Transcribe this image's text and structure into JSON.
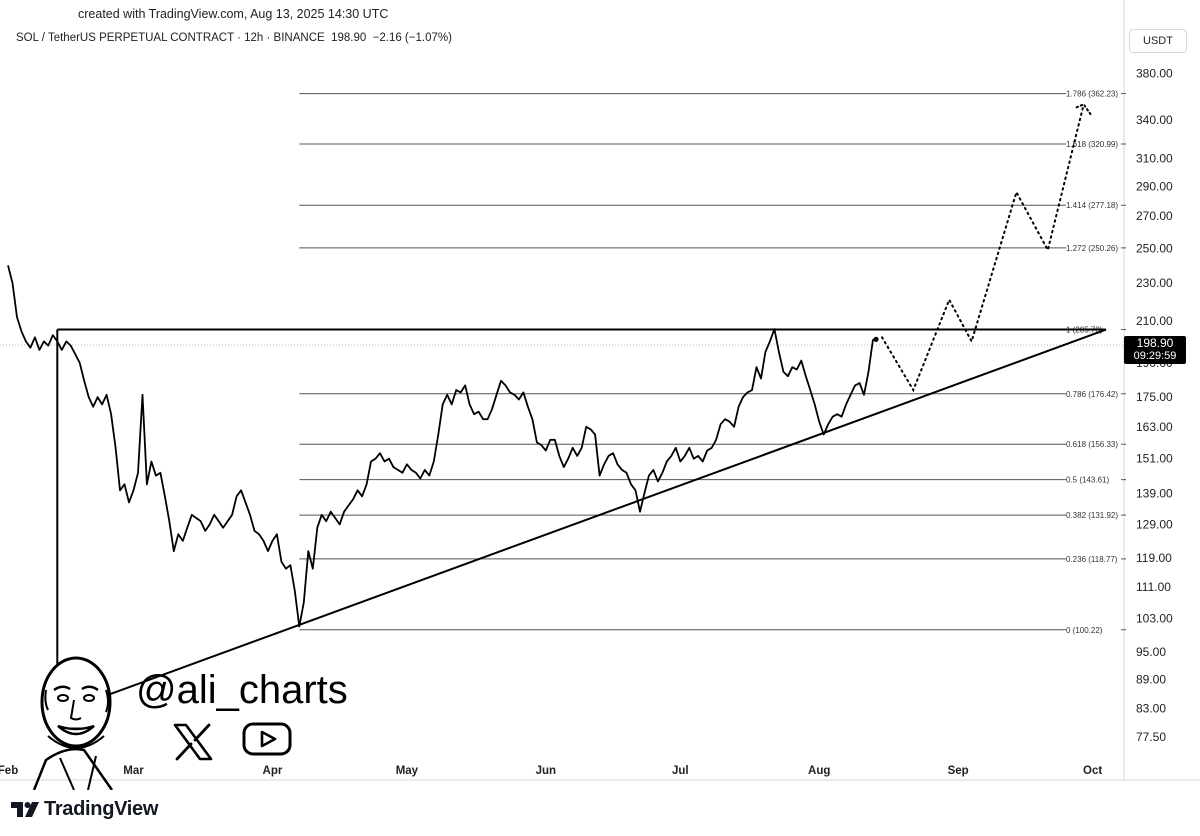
{
  "header": {
    "created": "created with TradingView.com, Aug 13, 2025 14:30 UTC",
    "title": "SOL / TetherUS PERPETUAL CONTRACT · 12h · BINANCE",
    "last": "198.90",
    "change": "−2.16 (−1.07%)",
    "currency": "USDT"
  },
  "price_label": {
    "price": "198.90",
    "countdown": "09:29:59"
  },
  "brand": {
    "name": "TradingView",
    "logo_icon": "tradingview-logo-icon"
  },
  "watermark": {
    "handle": "@ali_charts",
    "icons": [
      "avatar-icon",
      "x-logo-icon",
      "youtube-play-icon"
    ]
  },
  "chart_data": {
    "type": "line",
    "ylabel": "",
    "xlabel": "",
    "y_scale": "log",
    "ylim": [
      73,
      430
    ],
    "xlim": [
      "2025-02-01",
      "2025-10-08"
    ],
    "y_ticks": [
      "380.00",
      "340.00",
      "310.00",
      "290.00",
      "270.00",
      "250.00",
      "230.00",
      "210.00",
      "190.00",
      "175.00",
      "163.00",
      "151.00",
      "139.00",
      "129.00",
      "119.00",
      "111.00",
      "103.00",
      "95.00",
      "89.00",
      "83.00",
      "77.50"
    ],
    "x_ticks": [
      {
        "label": "Feb",
        "date": "2025-02-01"
      },
      {
        "label": "Mar",
        "date": "2025-03-01"
      },
      {
        "label": "Apr",
        "date": "2025-04-01"
      },
      {
        "label": "May",
        "date": "2025-05-01"
      },
      {
        "label": "Jun",
        "date": "2025-06-01"
      },
      {
        "label": "Jul",
        "date": "2025-07-01"
      },
      {
        "label": "Aug",
        "date": "2025-08-01"
      },
      {
        "label": "Sep",
        "date": "2025-09-01"
      },
      {
        "label": "Oct",
        "date": "2025-10-01"
      }
    ],
    "fib_levels": [
      {
        "label": "0 (100.22)",
        "value": 100.22
      },
      {
        "label": "0.236 (118.77)",
        "value": 118.77
      },
      {
        "label": "0.382 (131.92)",
        "value": 131.92
      },
      {
        "label": "0.5 (143.61)",
        "value": 143.61
      },
      {
        "label": "0.618 (156.33)",
        "value": 156.33
      },
      {
        "label": "0.786 (176.42)",
        "value": 176.42
      },
      {
        "label": "1 (205.78)",
        "value": 205.78
      },
      {
        "label": "1.272 (250.26)",
        "value": 250.26
      },
      {
        "label": "1.414 (277.18)",
        "value": 277.18
      },
      {
        "label": "1.618 (320.99)",
        "value": 320.99
      },
      {
        "label": "1.786 (362.23)",
        "value": 362.23
      }
    ],
    "fib_start": "2025-04-07",
    "fib_end": "2025-10-04",
    "resistance": {
      "value": 205.78,
      "from": "2025-02-12",
      "to": "2025-10-04"
    },
    "vertical_marker": {
      "date": "2025-02-12",
      "from_value": 205.78,
      "to_value": 82
    },
    "trendline": [
      {
        "date": "2025-02-12",
        "value": 82
      },
      {
        "date": "2025-10-04",
        "value": 205.78
      }
    ],
    "series": [
      {
        "values": [
          [
            "2025-02-01",
            240
          ],
          [
            "2025-02-02",
            230
          ],
          [
            "2025-02-03",
            212
          ],
          [
            "2025-02-04",
            205
          ],
          [
            "2025-02-05",
            200
          ],
          [
            "2025-02-06",
            197
          ],
          [
            "2025-02-07",
            202
          ],
          [
            "2025-02-08",
            196
          ],
          [
            "2025-02-09",
            200
          ],
          [
            "2025-02-10",
            198
          ],
          [
            "2025-02-11",
            203
          ],
          [
            "2025-02-12",
            200
          ],
          [
            "2025-02-13",
            196
          ],
          [
            "2025-02-14",
            200
          ],
          [
            "2025-02-15",
            198
          ],
          [
            "2025-02-16",
            194
          ],
          [
            "2025-02-17",
            190
          ],
          [
            "2025-02-18",
            182
          ],
          [
            "2025-02-19",
            175
          ],
          [
            "2025-02-20",
            171
          ],
          [
            "2025-02-21",
            175
          ],
          [
            "2025-02-22",
            172
          ],
          [
            "2025-02-23",
            176
          ],
          [
            "2025-02-24",
            168
          ],
          [
            "2025-02-25",
            155
          ],
          [
            "2025-02-26",
            140
          ],
          [
            "2025-02-27",
            142
          ],
          [
            "2025-02-28",
            136
          ],
          [
            "2025-03-01",
            140
          ],
          [
            "2025-03-02",
            146
          ],
          [
            "2025-03-03",
            176
          ],
          [
            "2025-03-04",
            142
          ],
          [
            "2025-03-05",
            150
          ],
          [
            "2025-03-06",
            145
          ],
          [
            "2025-03-07",
            146
          ],
          [
            "2025-03-08",
            138
          ],
          [
            "2025-03-09",
            130
          ],
          [
            "2025-03-10",
            121
          ],
          [
            "2025-03-11",
            126
          ],
          [
            "2025-03-12",
            124
          ],
          [
            "2025-03-13",
            128
          ],
          [
            "2025-03-14",
            132
          ],
          [
            "2025-03-15",
            131
          ],
          [
            "2025-03-16",
            130
          ],
          [
            "2025-03-17",
            127
          ],
          [
            "2025-03-18",
            129
          ],
          [
            "2025-03-19",
            132
          ],
          [
            "2025-03-20",
            130
          ],
          [
            "2025-03-21",
            128
          ],
          [
            "2025-03-22",
            130
          ],
          [
            "2025-03-23",
            132
          ],
          [
            "2025-03-24",
            138
          ],
          [
            "2025-03-25",
            140
          ],
          [
            "2025-03-26",
            136
          ],
          [
            "2025-03-27",
            132
          ],
          [
            "2025-03-28",
            127
          ],
          [
            "2025-03-29",
            126
          ],
          [
            "2025-03-30",
            124
          ],
          [
            "2025-03-31",
            121
          ],
          [
            "2025-04-01",
            124
          ],
          [
            "2025-04-02",
            126
          ],
          [
            "2025-04-03",
            118
          ],
          [
            "2025-04-04",
            116
          ],
          [
            "2025-04-05",
            117
          ],
          [
            "2025-04-06",
            110
          ],
          [
            "2025-04-07",
            101
          ],
          [
            "2025-04-08",
            107
          ],
          [
            "2025-04-09",
            121
          ],
          [
            "2025-04-10",
            116
          ],
          [
            "2025-04-11",
            128
          ],
          [
            "2025-04-12",
            132
          ],
          [
            "2025-04-13",
            130
          ],
          [
            "2025-04-14",
            133
          ],
          [
            "2025-04-15",
            131
          ],
          [
            "2025-04-16",
            129
          ],
          [
            "2025-04-17",
            133
          ],
          [
            "2025-04-18",
            135
          ],
          [
            "2025-04-19",
            137
          ],
          [
            "2025-04-20",
            140
          ],
          [
            "2025-04-21",
            138
          ],
          [
            "2025-04-22",
            142
          ],
          [
            "2025-04-23",
            150
          ],
          [
            "2025-04-24",
            151
          ],
          [
            "2025-04-25",
            153
          ],
          [
            "2025-04-26",
            150
          ],
          [
            "2025-04-27",
            151
          ],
          [
            "2025-04-28",
            148
          ],
          [
            "2025-04-29",
            147
          ],
          [
            "2025-04-30",
            146
          ],
          [
            "2025-05-01",
            149
          ],
          [
            "2025-05-02",
            147
          ],
          [
            "2025-05-03",
            146
          ],
          [
            "2025-05-04",
            144
          ],
          [
            "2025-05-05",
            147
          ],
          [
            "2025-05-06",
            145
          ],
          [
            "2025-05-07",
            150
          ],
          [
            "2025-05-08",
            160
          ],
          [
            "2025-05-09",
            172
          ],
          [
            "2025-05-10",
            176
          ],
          [
            "2025-05-11",
            172
          ],
          [
            "2025-05-12",
            178
          ],
          [
            "2025-05-13",
            177
          ],
          [
            "2025-05-14",
            180
          ],
          [
            "2025-05-15",
            172
          ],
          [
            "2025-05-16",
            168
          ],
          [
            "2025-05-17",
            169
          ],
          [
            "2025-05-18",
            166
          ],
          [
            "2025-05-19",
            166
          ],
          [
            "2025-05-20",
            170
          ],
          [
            "2025-05-21",
            176
          ],
          [
            "2025-05-22",
            182
          ],
          [
            "2025-05-23",
            180
          ],
          [
            "2025-05-24",
            177
          ],
          [
            "2025-05-25",
            176
          ],
          [
            "2025-05-26",
            174
          ],
          [
            "2025-05-27",
            177
          ],
          [
            "2025-05-28",
            171
          ],
          [
            "2025-05-29",
            166
          ],
          [
            "2025-05-30",
            157
          ],
          [
            "2025-05-31",
            156
          ],
          [
            "2025-06-01",
            154
          ],
          [
            "2025-06-02",
            158
          ],
          [
            "2025-06-03",
            158
          ],
          [
            "2025-06-04",
            152
          ],
          [
            "2025-06-05",
            148
          ],
          [
            "2025-06-06",
            151
          ],
          [
            "2025-06-07",
            155
          ],
          [
            "2025-06-08",
            152
          ],
          [
            "2025-06-09",
            155
          ],
          [
            "2025-06-10",
            163
          ],
          [
            "2025-06-11",
            162
          ],
          [
            "2025-06-12",
            160
          ],
          [
            "2025-06-13",
            145
          ],
          [
            "2025-06-14",
            149
          ],
          [
            "2025-06-15",
            152
          ],
          [
            "2025-06-16",
            153
          ],
          [
            "2025-06-17",
            149
          ],
          [
            "2025-06-18",
            147
          ],
          [
            "2025-06-19",
            146
          ],
          [
            "2025-06-20",
            142
          ],
          [
            "2025-06-21",
            140
          ],
          [
            "2025-06-22",
            133
          ],
          [
            "2025-06-23",
            139
          ],
          [
            "2025-06-24",
            145
          ],
          [
            "2025-06-25",
            147
          ],
          [
            "2025-06-26",
            143
          ],
          [
            "2025-06-27",
            146
          ],
          [
            "2025-06-28",
            150
          ],
          [
            "2025-06-29",
            152
          ],
          [
            "2025-06-30",
            155
          ],
          [
            "2025-07-01",
            150
          ],
          [
            "2025-07-02",
            152
          ],
          [
            "2025-07-03",
            155
          ],
          [
            "2025-07-04",
            151
          ],
          [
            "2025-07-05",
            152
          ],
          [
            "2025-07-06",
            150
          ],
          [
            "2025-07-07",
            154
          ],
          [
            "2025-07-08",
            155
          ],
          [
            "2025-07-09",
            158
          ],
          [
            "2025-07-10",
            164
          ],
          [
            "2025-07-11",
            166
          ],
          [
            "2025-07-12",
            165
          ],
          [
            "2025-07-13",
            163
          ],
          [
            "2025-07-14",
            171
          ],
          [
            "2025-07-15",
            175
          ],
          [
            "2025-07-16",
            177
          ],
          [
            "2025-07-17",
            178
          ],
          [
            "2025-07-18",
            188
          ],
          [
            "2025-07-19",
            183
          ],
          [
            "2025-07-20",
            195
          ],
          [
            "2025-07-21",
            200
          ],
          [
            "2025-07-22",
            206
          ],
          [
            "2025-07-23",
            195
          ],
          [
            "2025-07-24",
            186
          ],
          [
            "2025-07-25",
            184
          ],
          [
            "2025-07-26",
            188
          ],
          [
            "2025-07-27",
            187
          ],
          [
            "2025-07-28",
            191
          ],
          [
            "2025-07-29",
            184
          ],
          [
            "2025-07-30",
            178
          ],
          [
            "2025-07-31",
            172
          ],
          [
            "2025-08-01",
            165
          ],
          [
            "2025-08-02",
            160
          ],
          [
            "2025-08-03",
            164
          ],
          [
            "2025-08-04",
            167
          ],
          [
            "2025-08-05",
            168
          ],
          [
            "2025-08-06",
            167
          ],
          [
            "2025-08-07",
            172
          ],
          [
            "2025-08-08",
            176
          ],
          [
            "2025-08-09",
            180
          ],
          [
            "2025-08-10",
            181
          ],
          [
            "2025-08-11",
            176
          ],
          [
            "2025-08-12",
            186
          ],
          [
            "2025-08-13",
            201
          ]
        ]
      },
      {
        "values": [
          [
            "2025-08-15",
            202
          ],
          [
            "2025-08-22",
            178
          ],
          [
            "2025-08-30",
            221
          ],
          [
            "2025-09-04",
            200
          ],
          [
            "2025-09-14",
            286
          ],
          [
            "2025-09-21",
            249
          ],
          [
            "2025-09-29",
            353
          ]
        ]
      }
    ]
  }
}
